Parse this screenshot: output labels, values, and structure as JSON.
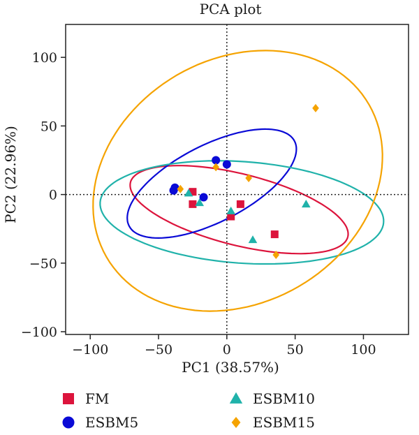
{
  "chart_data": {
    "type": "scatter",
    "title": "PCA plot",
    "xlabel": "PC1 (38.57%)",
    "ylabel": "PC2 (22.96%)",
    "xlim": [
      -118,
      133
    ],
    "ylim": [
      -102,
      124
    ],
    "xticks": [
      -100,
      -50,
      0,
      50,
      100
    ],
    "yticks": [
      -100,
      -50,
      0,
      50,
      100
    ],
    "xtick_labels": [
      "−100",
      "−50",
      "0",
      "50",
      "100"
    ],
    "ytick_labels": [
      "−100",
      "−50",
      "0",
      "50",
      "100"
    ],
    "reference_lines": {
      "x": 0,
      "y": 0,
      "style": "dotted"
    },
    "grid": false,
    "legend_position": "bottom",
    "series": [
      {
        "name": "FM",
        "marker": "square",
        "color": "#dc143c",
        "x": [
          -25,
          -25,
          3,
          10,
          35
        ],
        "y": [
          2,
          -7,
          -16,
          -7,
          -29
        ],
        "ellipse": {
          "cx": 9,
          "cy": -11,
          "rx": 82,
          "ry": 26,
          "angle_deg": -14
        }
      },
      {
        "name": "ESBM5",
        "marker": "circle",
        "color": "#0a0ad6",
        "x": [
          -39,
          -38,
          -8,
          0,
          -17
        ],
        "y": [
          3,
          5,
          25,
          22,
          -2
        ],
        "ellipse": {
          "cx": -11,
          "cy": 8,
          "rx": 68,
          "ry": 28,
          "angle_deg": 27
        }
      },
      {
        "name": "ESBM10",
        "marker": "triangle",
        "color": "#20b2aa",
        "x": [
          -28,
          -20,
          3,
          19,
          58
        ],
        "y": [
          1,
          -6,
          -12,
          -33,
          -7
        ],
        "ellipse": {
          "cx": 11,
          "cy": -13,
          "rx": 104,
          "ry": 37,
          "angle_deg": -4
        }
      },
      {
        "name": "ESBM15",
        "marker": "diamond",
        "color": "#f5a300",
        "x": [
          -34,
          -8,
          16,
          36,
          65
        ],
        "y": [
          4,
          20,
          12,
          -44,
          63
        ],
        "ellipse": {
          "cx": 8,
          "cy": 10,
          "rx": 111,
          "ry": 89,
          "angle_deg": 30
        }
      }
    ]
  }
}
